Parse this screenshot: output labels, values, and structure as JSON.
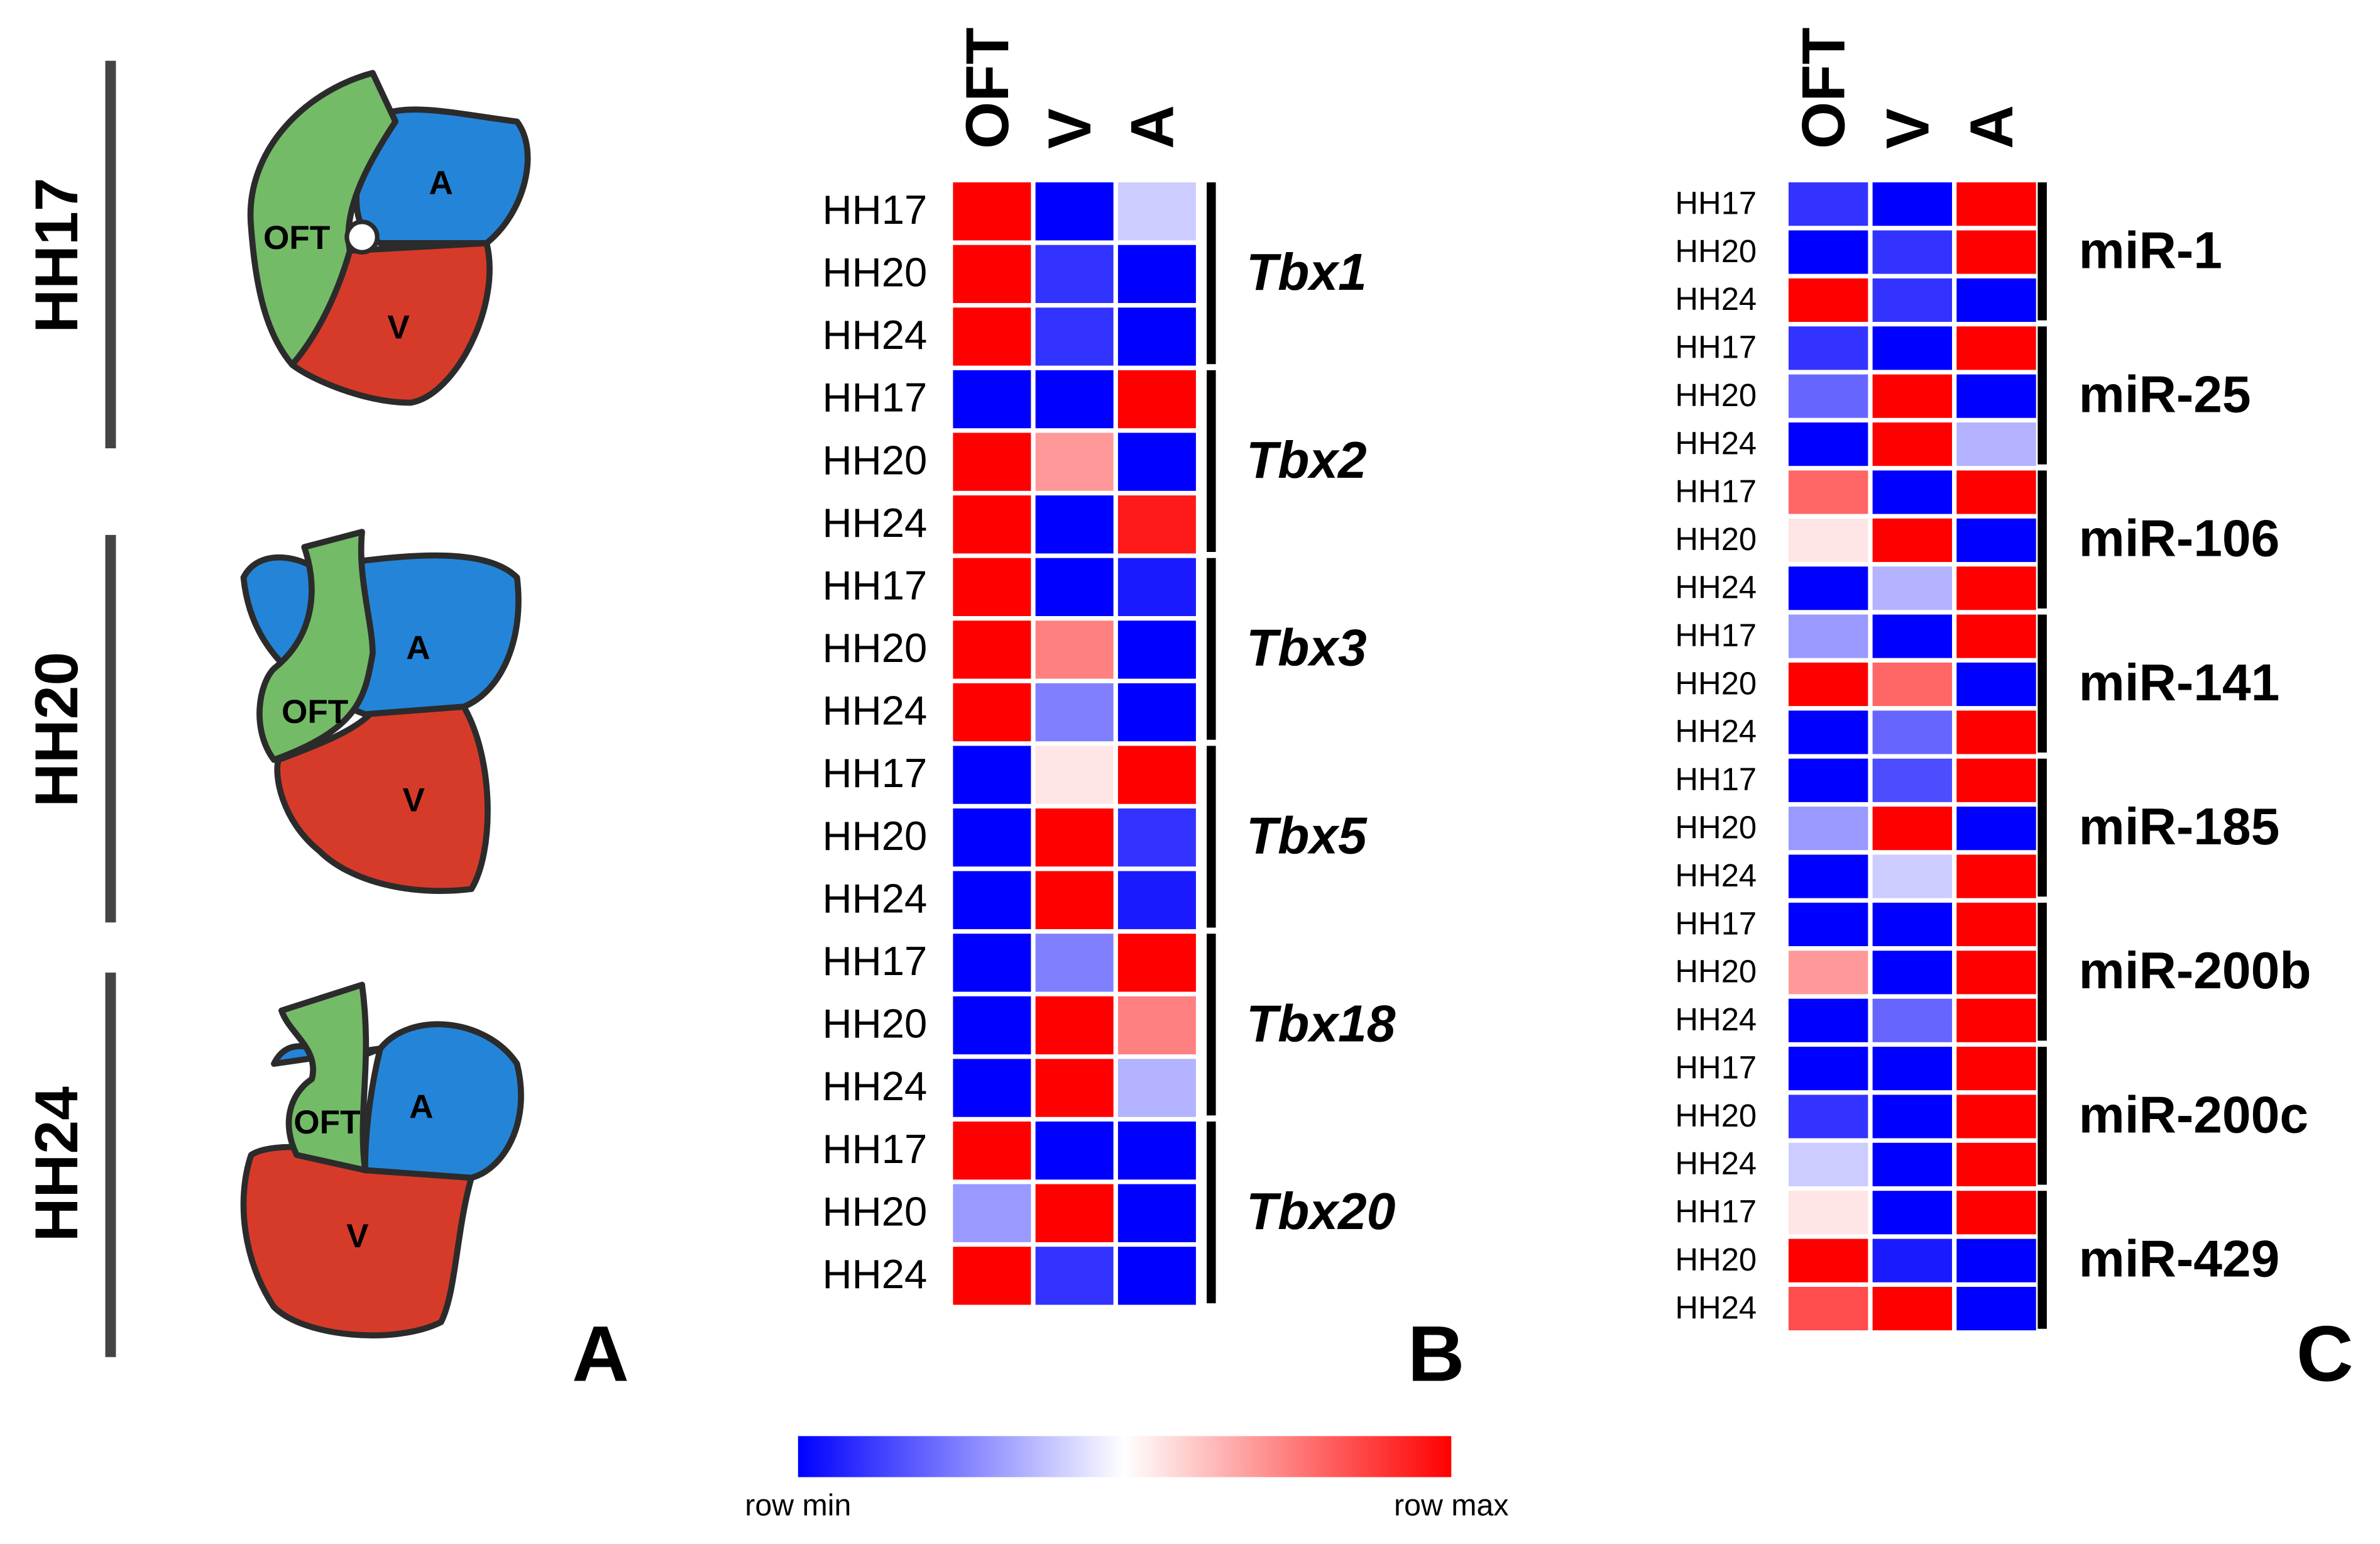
{
  "panel_a": {
    "label": "A",
    "stages": [
      {
        "name": "HH17",
        "regions": [
          "OFT",
          "A",
          "V"
        ]
      },
      {
        "name": "HH20",
        "regions": [
          "OFT",
          "A",
          "V"
        ]
      },
      {
        "name": "HH24",
        "regions": [
          "OFT",
          "A",
          "V"
        ]
      }
    ]
  },
  "chart_data": [
    {
      "type": "heatmap",
      "panel_label": "B",
      "columns": [
        "OFT",
        "V",
        "A"
      ],
      "groups": [
        {
          "name": "Tbx1",
          "rows": [
            "HH17",
            "HH20",
            "HH24"
          ],
          "values": [
            [
              1,
              0,
              0.4
            ],
            [
              1,
              0.1,
              0
            ],
            [
              1,
              0.1,
              0
            ]
          ]
        },
        {
          "name": "Tbx2",
          "rows": [
            "HH17",
            "HH20",
            "HH24"
          ],
          "values": [
            [
              0,
              0,
              1
            ],
            [
              1,
              0.7,
              0
            ],
            [
              1,
              0,
              0.95
            ]
          ]
        },
        {
          "name": "Tbx3",
          "rows": [
            "HH17",
            "HH20",
            "HH24"
          ],
          "values": [
            [
              1,
              0,
              0.05
            ],
            [
              1,
              0.75,
              0
            ],
            [
              1,
              0.25,
              0
            ]
          ]
        },
        {
          "name": "Tbx5",
          "rows": [
            "HH17",
            "HH20",
            "HH24"
          ],
          "values": [
            [
              0,
              0.55,
              1
            ],
            [
              0,
              1,
              0.1
            ],
            [
              0,
              1,
              0.05
            ]
          ]
        },
        {
          "name": "Tbx18",
          "rows": [
            "HH17",
            "HH20",
            "HH24"
          ],
          "values": [
            [
              0,
              0.25,
              1
            ],
            [
              0,
              1,
              0.75
            ],
            [
              0,
              1,
              0.35
            ]
          ]
        },
        {
          "name": "Tbx20",
          "rows": [
            "HH17",
            "HH20",
            "HH24"
          ],
          "values": [
            [
              1,
              0,
              0
            ],
            [
              0.3,
              1,
              0
            ],
            [
              1,
              0.1,
              0
            ]
          ]
        }
      ]
    },
    {
      "type": "heatmap",
      "panel_label": "C",
      "columns": [
        "OFT",
        "V",
        "A"
      ],
      "groups": [
        {
          "name": "miR-1",
          "rows": [
            "HH17",
            "HH20",
            "HH24"
          ],
          "values": [
            [
              0.1,
              0,
              1
            ],
            [
              0,
              0.1,
              1
            ],
            [
              1,
              0.1,
              0
            ]
          ]
        },
        {
          "name": "miR-25",
          "rows": [
            "HH17",
            "HH20",
            "HH24"
          ],
          "values": [
            [
              0.1,
              0,
              1
            ],
            [
              0.2,
              1,
              0
            ],
            [
              0,
              1,
              0.35
            ]
          ]
        },
        {
          "name": "miR-106",
          "rows": [
            "HH17",
            "HH20",
            "HH24"
          ],
          "values": [
            [
              0.8,
              0,
              1
            ],
            [
              0.55,
              1,
              0
            ],
            [
              0,
              0.35,
              1
            ]
          ]
        },
        {
          "name": "miR-141",
          "rows": [
            "HH17",
            "HH20",
            "HH24"
          ],
          "values": [
            [
              0.3,
              0,
              1
            ],
            [
              1,
              0.8,
              0
            ],
            [
              0,
              0.2,
              1
            ]
          ]
        },
        {
          "name": "miR-185",
          "rows": [
            "HH17",
            "HH20",
            "HH24"
          ],
          "values": [
            [
              0,
              0.15,
              1
            ],
            [
              0.3,
              1,
              0
            ],
            [
              0,
              0.4,
              1
            ]
          ]
        },
        {
          "name": "miR-200b",
          "rows": [
            "HH17",
            "HH20",
            "HH24"
          ],
          "values": [
            [
              0,
              0,
              1
            ],
            [
              0.7,
              0,
              1
            ],
            [
              0,
              0.2,
              1
            ]
          ]
        },
        {
          "name": "miR-200c",
          "rows": [
            "HH17",
            "HH20",
            "HH24"
          ],
          "values": [
            [
              0,
              0,
              1
            ],
            [
              0.1,
              0,
              1
            ],
            [
              0.4,
              0,
              1
            ]
          ]
        },
        {
          "name": "miR-429",
          "rows": [
            "HH17",
            "HH20",
            "HH24"
          ],
          "values": [
            [
              0.55,
              0,
              1
            ],
            [
              1,
              0.05,
              0
            ],
            [
              0.85,
              1,
              0
            ]
          ]
        }
      ]
    }
  ],
  "colorbar": {
    "min_label": "row min",
    "max_label": "row max",
    "colors": [
      "#0000ff",
      "#ffffff",
      "#ff0000"
    ]
  }
}
